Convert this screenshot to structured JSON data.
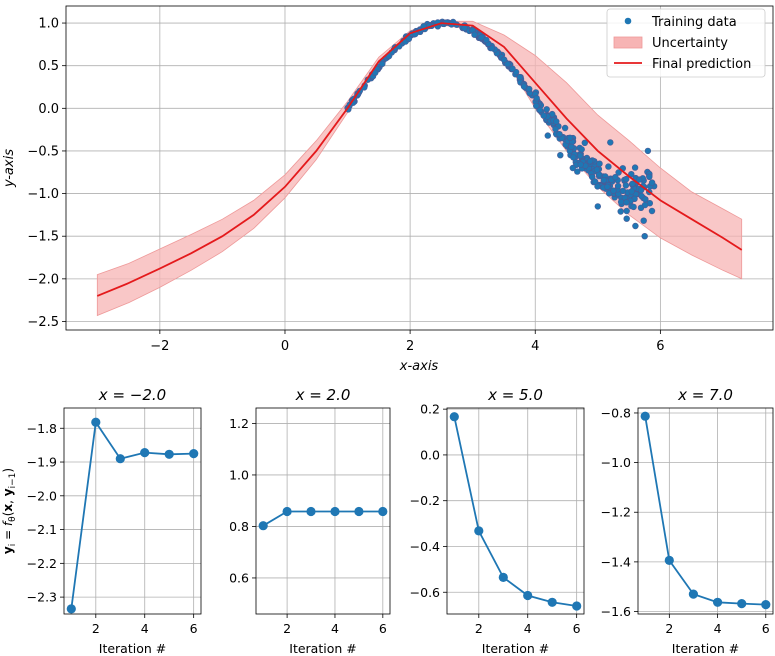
{
  "chart_data": [
    {
      "type": "scatter+line+band",
      "xlabel": "x-axis",
      "ylabel": "y-axis",
      "xlim": [
        -3.5,
        7.8
      ],
      "ylim": [
        -2.6,
        1.2
      ],
      "xticks": [
        -2,
        0,
        2,
        4,
        6
      ],
      "yticks": [
        -2.5,
        -2.0,
        -1.5,
        -1.0,
        -0.5,
        0.0,
        0.5,
        1.0
      ],
      "xtick_labels": [
        "−2",
        "0",
        "2",
        "4",
        "6"
      ],
      "ytick_labels": [
        "−2.5",
        "−2.0",
        "−1.5",
        "−1.0",
        "−0.5",
        "0.0",
        "0.5",
        "1.0"
      ],
      "grid": true,
      "legend": {
        "position": "top-right",
        "entries": [
          "Training data",
          "Uncertainty",
          "Final prediction"
        ]
      },
      "colors": {
        "training": "#1f77b4",
        "training_edge": "#4c5a96",
        "band": "#f7b4b4",
        "band_edge": "#ee9999",
        "prediction": "#e41a1c",
        "series": "#1f77b4",
        "grid": "#b0b0b0"
      },
      "final_prediction": {
        "x": [
          -3.0,
          -2.5,
          -2.0,
          -1.5,
          -1.0,
          -0.5,
          0.0,
          0.5,
          1.0,
          1.5,
          2.0,
          2.5,
          3.0,
          3.5,
          4.0,
          4.5,
          5.0,
          5.5,
          6.0,
          6.5,
          7.0,
          7.3
        ],
        "y": [
          -2.2,
          -2.05,
          -1.88,
          -1.7,
          -1.5,
          -1.25,
          -0.92,
          -0.5,
          0.0,
          0.55,
          0.88,
          1.0,
          0.97,
          0.72,
          0.3,
          -0.12,
          -0.5,
          -0.8,
          -1.08,
          -1.3,
          -1.52,
          -1.66
        ]
      },
      "uncertainty": {
        "x": [
          -3.0,
          -2.5,
          -2.0,
          -1.5,
          -1.0,
          -0.5,
          0.0,
          0.5,
          1.0,
          1.5,
          2.0,
          2.5,
          3.0,
          3.5,
          4.0,
          4.5,
          5.0,
          5.5,
          6.0,
          6.5,
          7.0,
          7.3
        ],
        "lower": [
          -2.43,
          -2.28,
          -2.1,
          -1.9,
          -1.68,
          -1.41,
          -1.05,
          -0.6,
          -0.05,
          0.5,
          0.85,
          0.98,
          0.92,
          0.6,
          0.0,
          -0.5,
          -0.92,
          -1.25,
          -1.52,
          -1.72,
          -1.9,
          -2.0
        ],
        "upper": [
          -1.95,
          -1.82,
          -1.65,
          -1.48,
          -1.3,
          -1.08,
          -0.78,
          -0.38,
          0.08,
          0.6,
          0.91,
          1.02,
          1.02,
          0.86,
          0.62,
          0.3,
          -0.08,
          -0.38,
          -0.7,
          -0.98,
          -1.18,
          -1.3
        ]
      },
      "training_data": {
        "clean_x_range": [
          1.0,
          4.0
        ],
        "noisy_x_range": [
          4.0,
          5.9
        ],
        "outliers": [
          [
            4.2,
            -0.32
          ],
          [
            4.4,
            -0.55
          ],
          [
            5.0,
            -1.15
          ],
          [
            5.2,
            -0.4
          ],
          [
            5.6,
            -1.38
          ],
          [
            5.8,
            -0.5
          ],
          [
            5.75,
            -1.5
          ],
          [
            4.6,
            -0.7
          ]
        ]
      }
    },
    {
      "type": "line",
      "title": "x = −2.0",
      "xlabel": "Iteration #",
      "ylabel": "y_i = f_θ(x, y_{i−1})",
      "x": [
        1,
        2,
        3,
        4,
        5,
        6
      ],
      "values": [
        -2.335,
        -1.782,
        -1.89,
        -1.872,
        -1.877,
        -1.875
      ],
      "xlim": [
        0.7,
        6.3
      ],
      "ylim": [
        -2.35,
        -1.74
      ],
      "xticks": [
        2,
        4,
        6
      ],
      "xtick_labels": [
        "2",
        "4",
        "6"
      ],
      "yticks": [
        -2.3,
        -2.2,
        -2.1,
        -2.0,
        -1.9,
        -1.8
      ],
      "ytick_labels": [
        "−2.3",
        "−2.2",
        "−2.1",
        "−2.0",
        "−1.9",
        "−1.8"
      ]
    },
    {
      "type": "line",
      "title": "x = 2.0",
      "xlabel": "Iteration #",
      "x": [
        1,
        2,
        3,
        4,
        5,
        6
      ],
      "values": [
        0.803,
        0.858,
        0.858,
        0.858,
        0.858,
        0.858
      ],
      "xlim": [
        0.7,
        6.3
      ],
      "ylim": [
        0.46,
        1.26
      ],
      "xticks": [
        2,
        4,
        6
      ],
      "xtick_labels": [
        "2",
        "4",
        "6"
      ],
      "yticks": [
        0.6,
        0.8,
        1.0,
        1.2
      ],
      "ytick_labels": [
        "0.6",
        "0.8",
        "1.0",
        "1.2"
      ]
    },
    {
      "type": "line",
      "title": "x = 5.0",
      "xlabel": "Iteration #",
      "x": [
        1,
        2,
        3,
        4,
        5,
        6
      ],
      "values": [
        0.167,
        -0.332,
        -0.535,
        -0.614,
        -0.644,
        -0.66
      ],
      "xlim": [
        0.7,
        6.3
      ],
      "ylim": [
        -0.695,
        0.205
      ],
      "xticks": [
        2,
        4,
        6
      ],
      "xtick_labels": [
        "2",
        "4",
        "6"
      ],
      "yticks": [
        -0.6,
        -0.4,
        -0.2,
        0.0,
        0.2
      ],
      "ytick_labels": [
        "−0.6",
        "−0.4",
        "−0.2",
        "0.0",
        "0.2"
      ]
    },
    {
      "type": "line",
      "title": "x = 7.0",
      "xlabel": "Iteration #",
      "x": [
        1,
        2,
        3,
        4,
        5,
        6
      ],
      "values": [
        -0.813,
        -1.394,
        -1.53,
        -1.563,
        -1.568,
        -1.572
      ],
      "xlim": [
        0.7,
        6.3
      ],
      "ylim": [
        -1.61,
        -0.78
      ],
      "xticks": [
        2,
        4,
        6
      ],
      "xtick_labels": [
        "2",
        "4",
        "6"
      ],
      "yticks": [
        -1.6,
        -1.4,
        -1.2,
        -1.0,
        -0.8
      ],
      "ytick_labels": [
        "−1.6",
        "−1.4",
        "−1.2",
        "−1.0",
        "−0.8"
      ]
    }
  ]
}
